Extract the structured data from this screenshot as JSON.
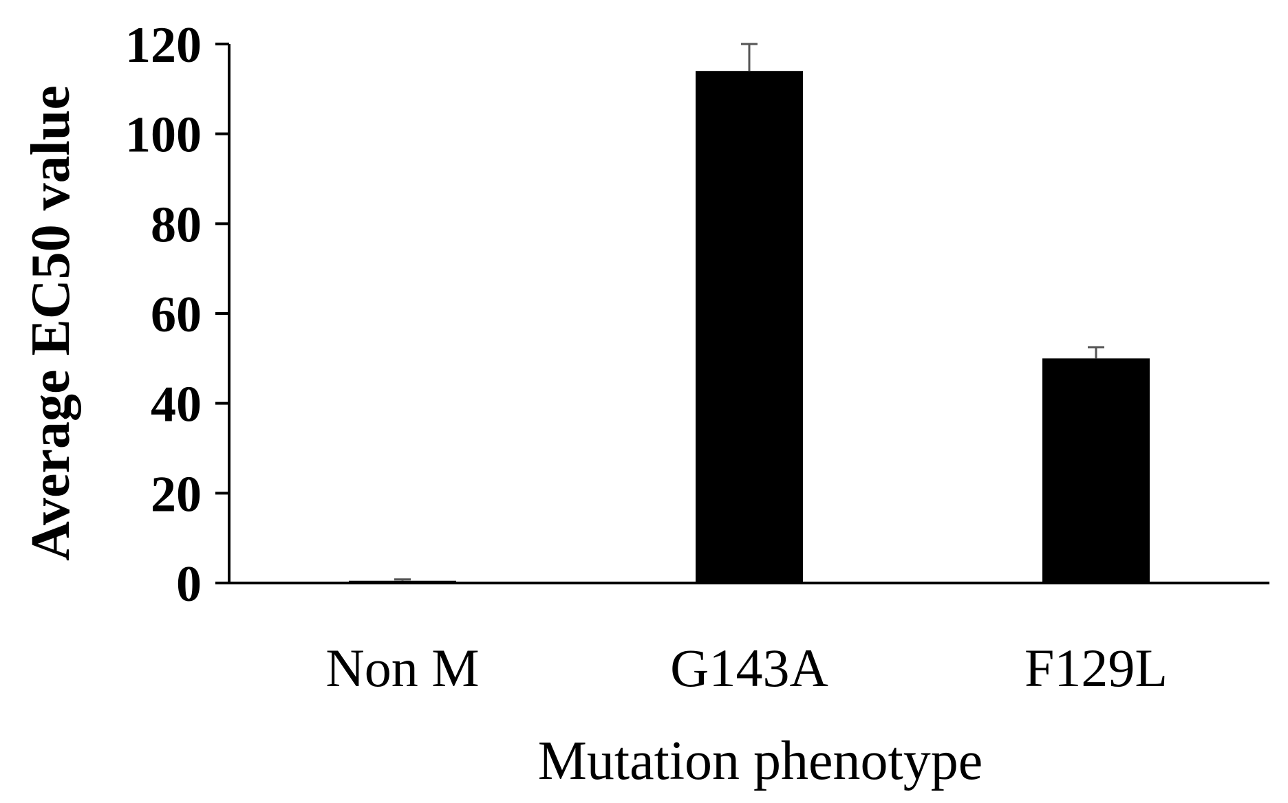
{
  "chart_data": {
    "type": "bar",
    "categories": [
      "Non M",
      "G143A",
      "F129L"
    ],
    "series": [
      {
        "values": [
          0.5,
          114,
          50
        ],
        "errors": [
          0.3,
          6,
          2.5
        ],
        "color": "#000000"
      }
    ],
    "xlabel": "Mutation phenotype",
    "ylabel": "Average EC50 value",
    "ylim": [
      0,
      120
    ],
    "yticks": [
      0,
      20,
      40,
      60,
      80,
      100,
      120
    ],
    "grid": false,
    "legend": "none",
    "error_bars": "upper"
  }
}
